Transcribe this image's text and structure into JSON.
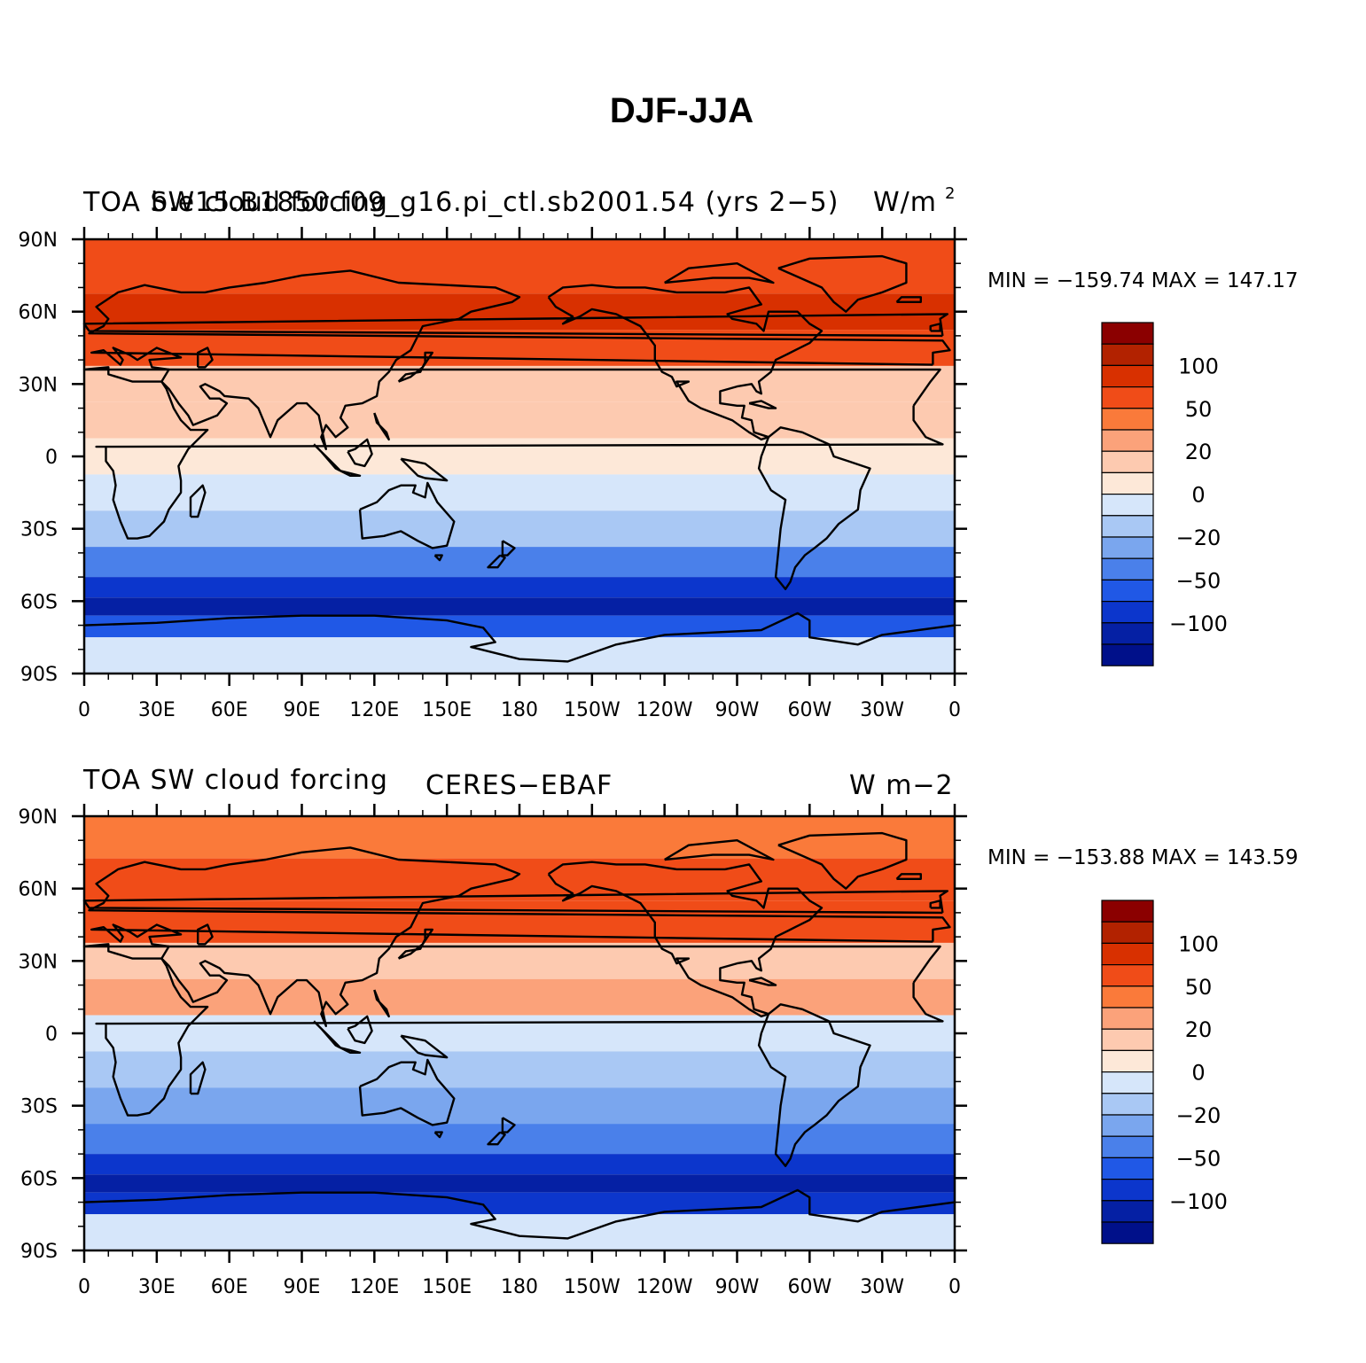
{
  "figure_title": "DJF-JJA",
  "colors": {
    "levels": [
      "#8b0000",
      "#b22200",
      "#d83000",
      "#f04c18",
      "#fa7a3a",
      "#fba27a",
      "#fdcab0",
      "#fde8d8",
      "#d6e6fa",
      "#a9c8f4",
      "#7aa6ee",
      "#4a80ea",
      "#2058e6",
      "#0c36cc",
      "#0520a4",
      "#00108a"
    ]
  },
  "x_ticks": [
    "0",
    "30E",
    "60E",
    "90E",
    "120E",
    "150E",
    "180",
    "150W",
    "120W",
    "90W",
    "60W",
    "30W",
    "0"
  ],
  "y_ticks": [
    "90N",
    "60N",
    "30N",
    "0",
    "30S",
    "60S",
    "90S"
  ],
  "colorbar_labels": [
    "100",
    "50",
    "20",
    "0",
    "−20",
    "−50",
    "−100"
  ],
  "panels": [
    {
      "header_left": "TOA SW cloud forcing",
      "header_center": "b.e15.B1850.f09_g16.pi_ctl.sb2001.54 (yrs 2−5)",
      "header_right": "W/m",
      "header_right_sup": "2",
      "min_max": "MIN = −159.74  MAX = 147.17"
    },
    {
      "header_left": "TOA SW cloud forcing",
      "header_center": "CERES−EBAF",
      "header_right": "W m−2",
      "header_right_sup": "",
      "min_max": "MIN = −153.88  MAX = 143.59"
    }
  ],
  "chart_data": {
    "type": "heatmap",
    "title": "DJF-JJA",
    "projection": "cylindrical equidistant",
    "x_range_deg_east": [
      0,
      360
    ],
    "y_range_deg_north": [
      -90,
      90
    ],
    "grid": false,
    "legend": "colorbar right",
    "colorbar_ticks": [
      100,
      50,
      20,
      0,
      -20,
      -50,
      -100
    ],
    "panels": [
      {
        "name": "b.e15.B1850.f09_g16.pi_ctl.sb2001.54 (yrs 2-5)",
        "variable": "TOA SW cloud forcing",
        "units": "W/m2",
        "min": -159.74,
        "max": 147.17,
        "bands": [
          {
            "lat": 75,
            "level": 3
          },
          {
            "lat": 60,
            "level": 2
          },
          {
            "lat": 45,
            "level": 3
          },
          {
            "lat": 30,
            "level": 6
          },
          {
            "lat": 15,
            "level": 6
          },
          {
            "lat": 0,
            "level": 7
          },
          {
            "lat": -15,
            "level": 8
          },
          {
            "lat": -30,
            "level": 9
          },
          {
            "lat": -45,
            "level": 11
          },
          {
            "lat": -55,
            "level": 13
          },
          {
            "lat": -62,
            "level": 14
          },
          {
            "lat": -70,
            "level": 12
          },
          {
            "lat": -80,
            "level": 8
          }
        ]
      },
      {
        "name": "CERES-EBAF",
        "variable": "TOA SW cloud forcing",
        "units": "W m-2",
        "min": -153.88,
        "max": 143.59,
        "bands": [
          {
            "lat": 80,
            "level": 4
          },
          {
            "lat": 65,
            "level": 3
          },
          {
            "lat": 45,
            "level": 3
          },
          {
            "lat": 30,
            "level": 6
          },
          {
            "lat": 15,
            "level": 5
          },
          {
            "lat": 0,
            "level": 8
          },
          {
            "lat": -15,
            "level": 9
          },
          {
            "lat": -30,
            "level": 10
          },
          {
            "lat": -45,
            "level": 11
          },
          {
            "lat": -55,
            "level": 13
          },
          {
            "lat": -62,
            "level": 14
          },
          {
            "lat": -70,
            "level": 13
          },
          {
            "lat": -80,
            "level": 8
          }
        ]
      }
    ]
  }
}
